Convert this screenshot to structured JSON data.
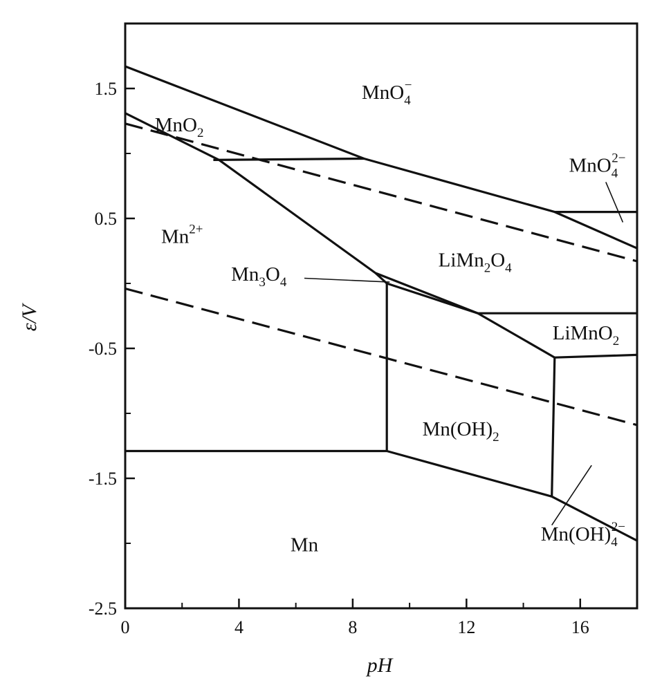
{
  "chart_data": {
    "type": "line",
    "title": "",
    "xlabel": "pH",
    "ylabel": "ε/V",
    "xlim": [
      0,
      18
    ],
    "ylim": [
      -2.5,
      2.0
    ],
    "x_ticks": [
      0,
      4,
      8,
      12,
      16
    ],
    "y_ticks": [
      1.5,
      0.5,
      -0.5,
      -1.5,
      -2.5
    ],
    "x_tick_labels": [
      "0",
      "4",
      "8",
      "12",
      "16"
    ],
    "y_tick_labels": [
      "1.5",
      "0.5",
      "-0.5",
      "-1.5",
      "-2.5"
    ],
    "grid": false,
    "legend": "none",
    "boundaries": [
      {
        "style": "solid",
        "points": [
          [
            0,
            1.67
          ],
          [
            8.4,
            0.96
          ],
          [
            15.1,
            0.55
          ],
          [
            18,
            0.27
          ]
        ]
      },
      {
        "style": "solid",
        "points": [
          [
            0,
            1.31
          ],
          [
            3.3,
            0.95
          ],
          [
            8.8,
            0.08
          ],
          [
            12.4,
            -0.23
          ],
          [
            15.1,
            -0.57
          ],
          [
            18,
            -0.55
          ]
        ]
      },
      {
        "style": "solid",
        "points": [
          [
            3.1,
            0.95
          ],
          [
            8.4,
            0.96
          ]
        ]
      },
      {
        "style": "solid",
        "points": [
          [
            15.1,
            0.55
          ],
          [
            18,
            0.55
          ]
        ]
      },
      {
        "style": "solid",
        "points": [
          [
            8.8,
            0.08
          ],
          [
            9.2,
            0.0
          ],
          [
            12.4,
            -0.23
          ]
        ]
      },
      {
        "style": "solid",
        "points": [
          [
            12.4,
            -0.23
          ],
          [
            18,
            -0.23
          ]
        ]
      },
      {
        "style": "solid",
        "points": [
          [
            9.2,
            0.0
          ],
          [
            9.2,
            -1.29
          ]
        ]
      },
      {
        "style": "solid",
        "points": [
          [
            15.1,
            -0.57
          ],
          [
            15.0,
            -1.64
          ]
        ]
      },
      {
        "style": "solid",
        "points": [
          [
            0,
            -1.29
          ],
          [
            9.2,
            -1.29
          ],
          [
            15.0,
            -1.64
          ],
          [
            18,
            -1.98
          ]
        ]
      },
      {
        "style": "dashed",
        "points": [
          [
            0,
            1.23
          ],
          [
            18,
            0.17
          ]
        ]
      },
      {
        "style": "dashed",
        "points": [
          [
            0,
            -0.04
          ],
          [
            18,
            -1.09
          ]
        ]
      }
    ],
    "pointer_lines": [
      {
        "points": [
          [
            6.3,
            0.04
          ],
          [
            9.3,
            0.01
          ]
        ]
      },
      {
        "points": [
          [
            16.9,
            0.78
          ],
          [
            17.5,
            0.47
          ]
        ]
      },
      {
        "points": [
          [
            16.4,
            -1.4
          ],
          [
            15.0,
            -1.86
          ]
        ]
      }
    ],
    "regions": [
      {
        "id": "mno4-minus",
        "base": "MnO",
        "sub": "4",
        "sup": "−",
        "x": 9.2,
        "y": 1.42
      },
      {
        "id": "mno2",
        "base": "MnO",
        "sub": "2",
        "sup": "",
        "x": 1.9,
        "y": 1.17
      },
      {
        "id": "mno4-2minus",
        "base": "MnO",
        "sub": "4",
        "sup": "2−",
        "x": 16.6,
        "y": 0.86
      },
      {
        "id": "mn2plus",
        "base": "Mn",
        "sub": "",
        "sup": "2+",
        "x": 2.0,
        "y": 0.31
      },
      {
        "id": "limn2o4",
        "base": "LiMn",
        "sub": "2",
        "sup": "",
        "tail": "O",
        "tail_sub": "4",
        "x": 12.3,
        "y": 0.13
      },
      {
        "id": "mn3o4",
        "base": "Mn",
        "sub": "3",
        "sup": "",
        "tail": "O",
        "tail_sub": "4",
        "x": 4.7,
        "y": 0.02
      },
      {
        "id": "limno2",
        "base": "LiMnO",
        "sub": "2",
        "sup": "",
        "x": 16.2,
        "y": -0.43
      },
      {
        "id": "mnoh2",
        "base": "Mn(OH)",
        "sub": "2",
        "sup": "",
        "x": 11.8,
        "y": -1.17
      },
      {
        "id": "mnoh4",
        "base": "Mn(OH)",
        "sub": "4",
        "sup": "2−",
        "x": 16.1,
        "y": -1.98
      },
      {
        "id": "mn",
        "base": "Mn",
        "sub": "",
        "sup": "",
        "x": 6.3,
        "y": -2.06
      }
    ]
  }
}
